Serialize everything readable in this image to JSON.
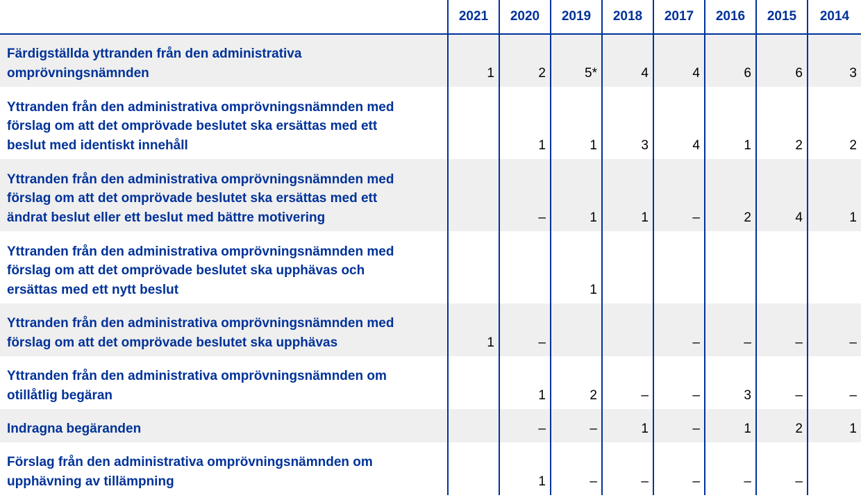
{
  "table": {
    "years": [
      "2021",
      "2020",
      "2019",
      "2018",
      "2017",
      "2016",
      "2015",
      "2014"
    ],
    "rows": [
      {
        "label_lines": [
          "Färdigställda yttranden från den administrativa",
          "omprövningsnämnden"
        ],
        "values": [
          "1",
          "2",
          "5*",
          "4",
          "4",
          "6",
          "6",
          "3"
        ]
      },
      {
        "label_lines": [
          "Yttranden från den administrativa omprövningsnämnden med",
          "förslag om att det omprövade beslutet ska ersättas med ett",
          "beslut med identiskt innehåll"
        ],
        "values": [
          "",
          "1",
          "1",
          "3",
          "4",
          "1",
          "2",
          "2"
        ]
      },
      {
        "label_lines": [
          "Yttranden från den administrativa omprövningsnämnden med",
          "förslag om att det omprövade beslutet ska ersättas med ett",
          "ändrat beslut eller ett beslut med bättre motivering"
        ],
        "values": [
          "",
          "–",
          "1",
          "1",
          "–",
          "2",
          "4",
          "1"
        ]
      },
      {
        "label_lines": [
          "Yttranden från den administrativa omprövningsnämnden med",
          "förslag om att det omprövade beslutet ska upphävas och",
          "ersättas med ett nytt beslut"
        ],
        "values": [
          "",
          "",
          "1",
          "",
          "",
          "",
          "",
          ""
        ]
      },
      {
        "label_lines": [
          "Yttranden från den administrativa omprövningsnämnden med",
          "förslag om att det omprövade beslutet ska upphävas"
        ],
        "values": [
          "1",
          "–",
          "",
          "",
          "–",
          "–",
          "–",
          "–"
        ]
      },
      {
        "label_lines": [
          "Yttranden från den administrativa omprövningsnämnden om",
          "otillåtlig begäran"
        ],
        "values": [
          "",
          "1",
          "2",
          "–",
          "–",
          "3",
          "–",
          "–"
        ]
      },
      {
        "label_lines": [
          "Indragna begäranden"
        ],
        "values": [
          "",
          "–",
          "–",
          "1",
          "–",
          "1",
          "2",
          "1"
        ]
      },
      {
        "label_lines": [
          "Förslag från den administrativa omprövningsnämnden om",
          "upphävning av tillämpning"
        ],
        "values": [
          "",
          "1",
          "–",
          "–",
          "–",
          "–",
          "–",
          ""
        ]
      }
    ]
  },
  "colors": {
    "accent": "#003299",
    "shade": "#efefef"
  }
}
